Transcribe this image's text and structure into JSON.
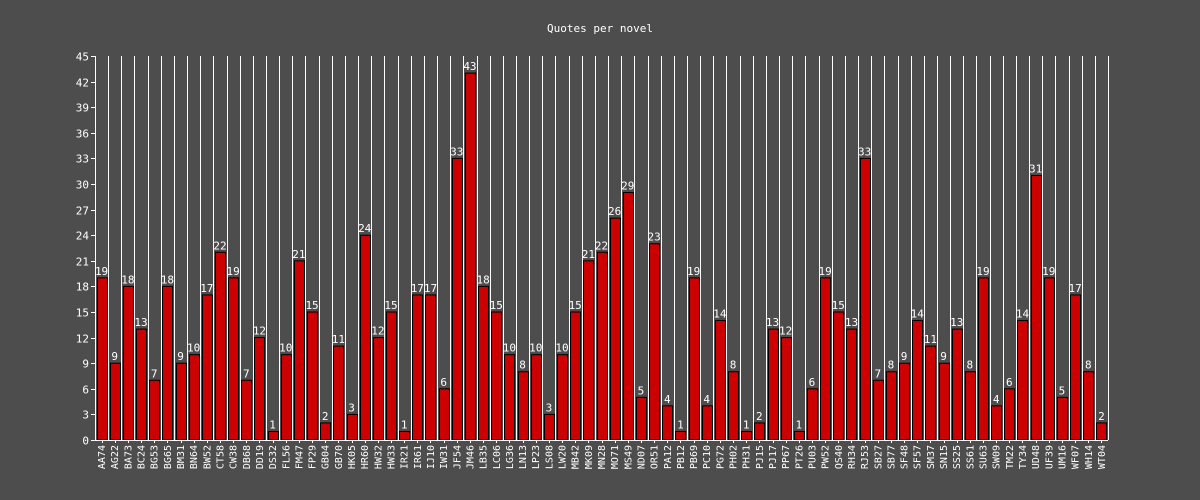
{
  "chart_data": {
    "type": "bar",
    "title": "Quotes per novel",
    "xlabel": "",
    "ylabel": "",
    "ylim": [
      0,
      45
    ],
    "yticks": [
      0,
      3,
      6,
      9,
      12,
      15,
      18,
      21,
      24,
      27,
      30,
      33,
      36,
      39,
      42,
      45
    ],
    "grid": "vertical",
    "colors": {
      "background": "#4d4d4d",
      "bar": "#cc0000",
      "bar_edge": "#000000",
      "grid": "#ffffff",
      "text": "#ffffff"
    },
    "categories": [
      "AA74",
      "AG22",
      "BA73",
      "BC24",
      "BG53",
      "BG65",
      "BM31",
      "BN64",
      "BW52",
      "CT58",
      "CW38",
      "DB68",
      "DD19",
      "DS32",
      "FL56",
      "FM47",
      "FP29",
      "GB04",
      "GB70",
      "HK05",
      "HR60",
      "HW32",
      "HW33",
      "IR21",
      "IR61",
      "IJ10",
      "IW31",
      "JF54",
      "JM46",
      "LB35",
      "LC06",
      "LG36",
      "LN13",
      "LP23",
      "LS08",
      "LW20",
      "MB42",
      "MK09",
      "MN28",
      "MO71",
      "MS49",
      "ND07",
      "OR51",
      "PA12",
      "PB12",
      "PB69",
      "PC10",
      "PG72",
      "PH02",
      "PH31",
      "PJ15",
      "PJ17",
      "PP67",
      "PT26",
      "PU03",
      "PW52",
      "QS40",
      "RH34",
      "RJ53",
      "SB27",
      "SB77",
      "SF48",
      "SF57",
      "SM37",
      "SN15",
      "SS25",
      "SS61",
      "SU63",
      "SW09",
      "TM22",
      "TY34",
      "UD48",
      "UF39",
      "UM16",
      "WF07",
      "WH14",
      "WT04"
    ],
    "values": [
      19,
      9,
      18,
      13,
      7,
      18,
      9,
      10,
      17,
      22,
      19,
      7,
      12,
      1,
      10,
      21,
      15,
      2,
      11,
      3,
      24,
      12,
      15,
      1,
      17,
      17,
      6,
      33,
      43,
      18,
      15,
      10,
      8,
      10,
      3,
      10,
      15,
      21,
      22,
      26,
      29,
      5,
      23,
      4,
      1,
      19,
      4,
      14,
      8,
      1,
      2,
      13,
      12,
      1,
      6,
      19,
      15,
      13,
      33,
      7,
      8,
      9,
      14,
      11,
      9,
      13,
      8,
      19,
      4,
      6,
      14,
      31,
      19,
      5,
      17,
      8,
      2
    ]
  }
}
